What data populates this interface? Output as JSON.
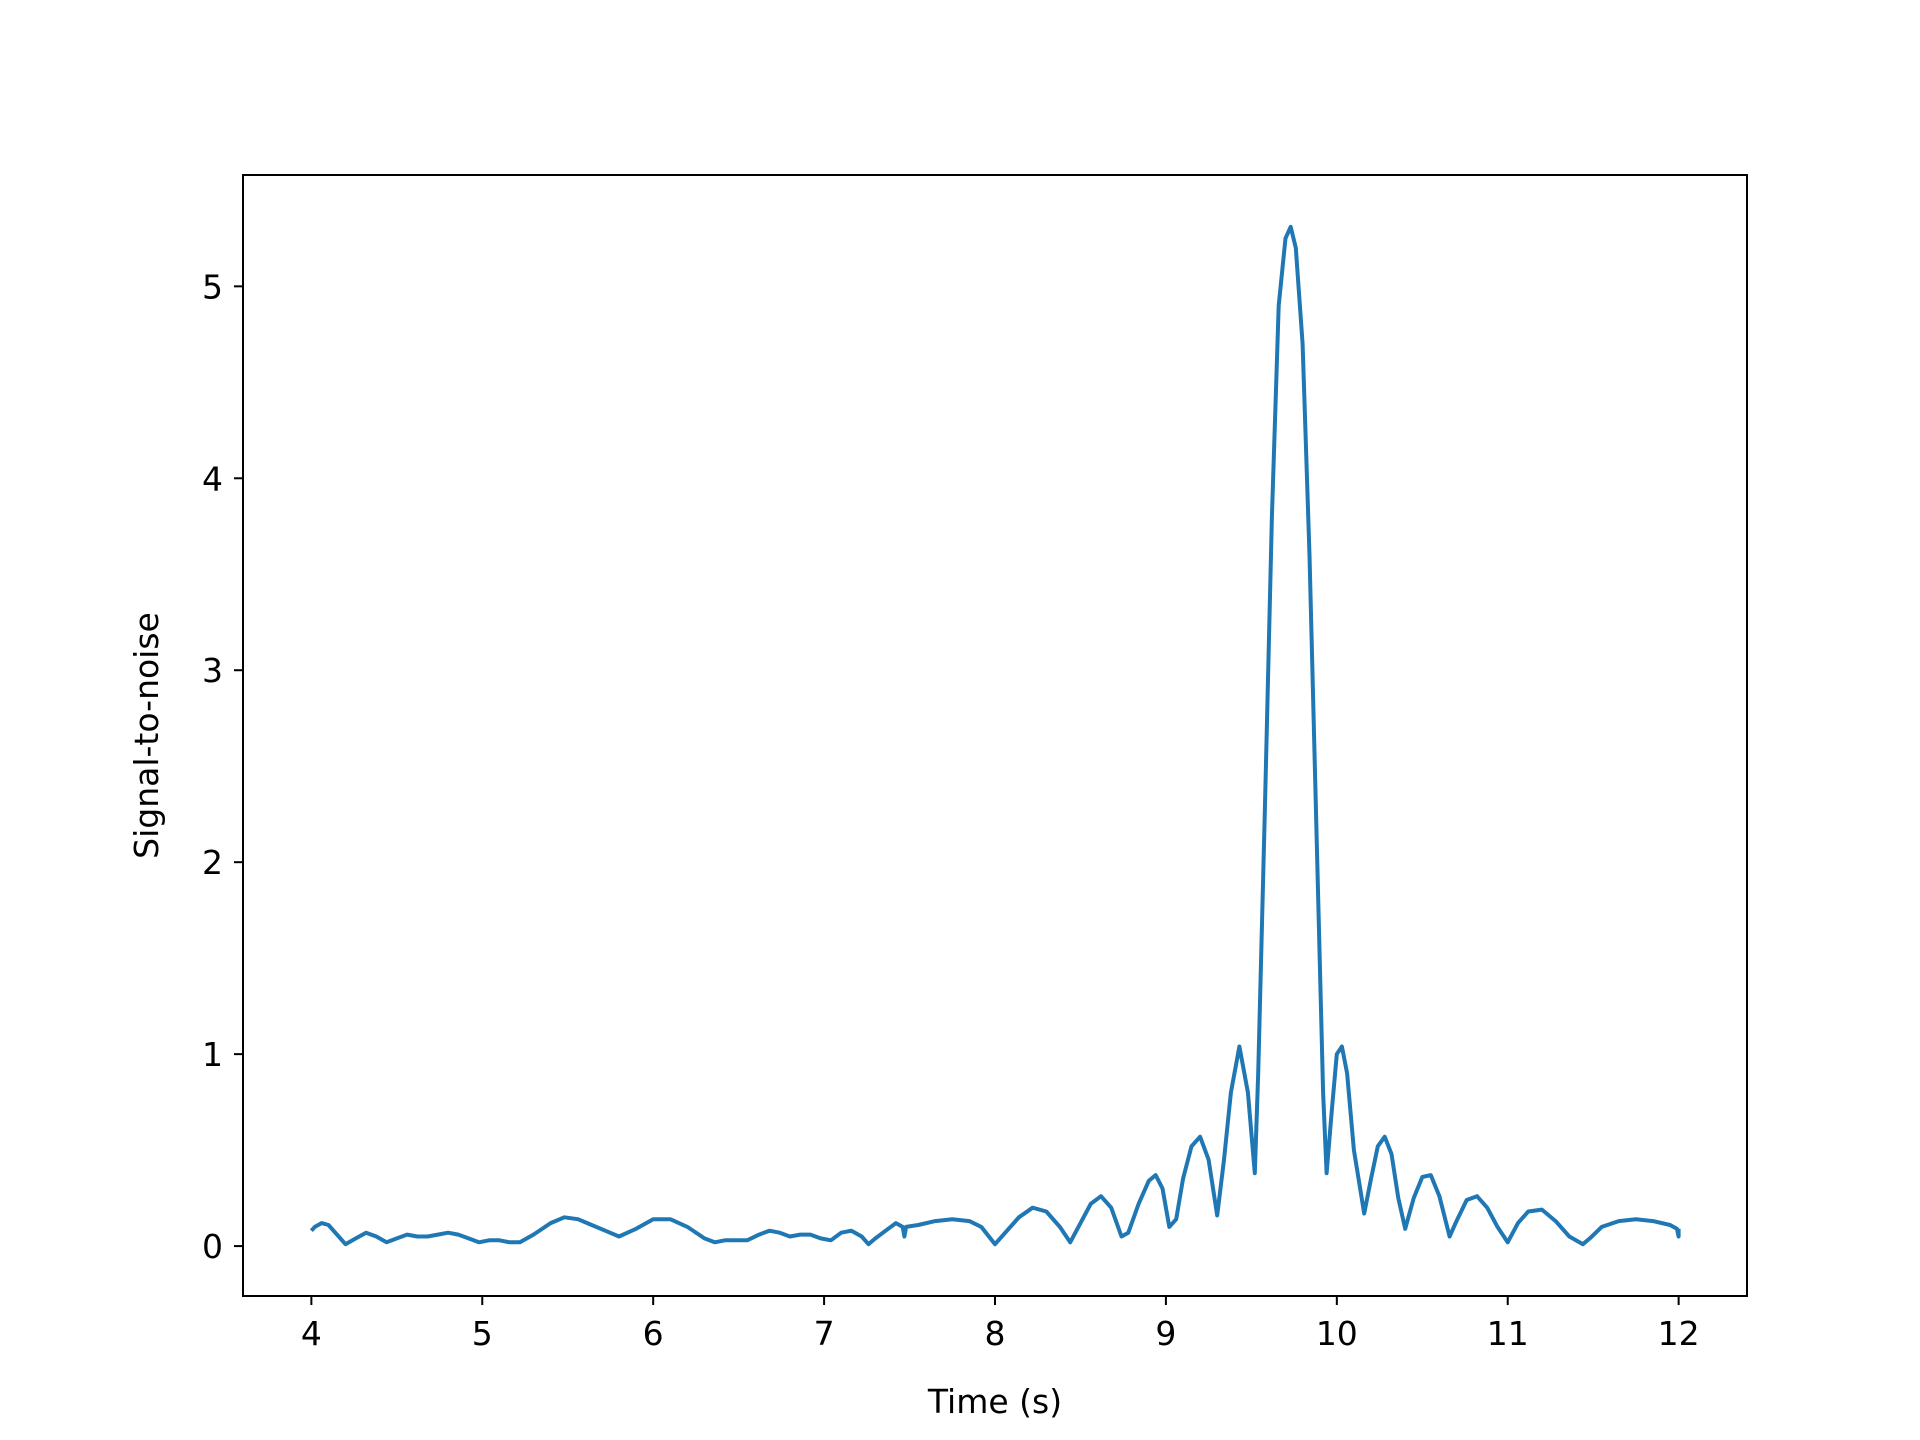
{
  "chart_data": {
    "type": "line",
    "title": "",
    "xlabel": "Time (s)",
    "ylabel": "Signal-to-noise",
    "xlim": [
      3.6,
      12.4
    ],
    "ylim": [
      -0.26,
      5.58
    ],
    "xticks": [
      4,
      5,
      6,
      7,
      8,
      9,
      10,
      11,
      12
    ],
    "yticks": [
      0,
      1,
      2,
      3,
      4,
      5
    ],
    "grid": false,
    "legend": "none",
    "series": [
      {
        "color": "#1f77b4",
        "x": [
          4.0,
          4.02,
          4.06,
          4.1,
          4.14,
          4.2,
          4.26,
          4.32,
          4.38,
          4.44,
          4.5,
          4.56,
          4.62,
          4.68,
          4.74,
          4.8,
          4.86,
          4.92,
          4.98,
          5.04,
          5.1,
          5.16,
          5.22,
          5.3,
          5.4,
          5.48,
          5.56,
          5.64,
          5.72,
          5.8,
          5.9,
          6.0,
          6.1,
          6.2,
          6.3,
          6.36,
          6.42,
          6.48,
          6.55,
          6.62,
          6.68,
          6.74,
          6.8,
          6.86,
          6.92,
          6.98,
          7.04,
          7.1,
          7.16,
          7.22,
          7.26,
          7.3,
          7.36,
          7.42,
          7.46,
          7.47,
          7.48,
          7.55,
          7.65,
          7.75,
          7.85,
          7.92,
          8.0,
          8.07,
          8.14,
          8.22,
          8.3,
          8.38,
          8.44,
          8.5,
          8.56,
          8.62,
          8.68,
          8.74,
          8.78,
          8.84,
          8.9,
          8.94,
          8.98,
          9.02,
          9.06,
          9.1,
          9.15,
          9.2,
          9.25,
          9.3,
          9.34,
          9.38,
          9.43,
          9.48,
          9.52,
          9.54,
          9.58,
          9.62,
          9.66,
          9.7,
          9.73,
          9.76,
          9.8,
          9.84,
          9.88,
          9.92,
          9.94,
          9.97,
          10.0,
          10.03,
          10.06,
          10.1,
          10.16,
          10.2,
          10.24,
          10.28,
          10.32,
          10.36,
          10.4,
          10.45,
          10.5,
          10.55,
          10.6,
          10.66,
          10.7,
          10.76,
          10.82,
          10.88,
          10.94,
          11.0,
          11.06,
          11.12,
          11.2,
          11.28,
          11.36,
          11.44,
          11.48,
          11.55,
          11.65,
          11.75,
          11.85,
          11.95,
          11.99,
          12.0,
          12.0
        ],
        "y": [
          0.08,
          0.1,
          0.12,
          0.11,
          0.07,
          0.01,
          0.04,
          0.07,
          0.05,
          0.02,
          0.04,
          0.06,
          0.05,
          0.05,
          0.06,
          0.07,
          0.06,
          0.04,
          0.02,
          0.03,
          0.03,
          0.02,
          0.02,
          0.06,
          0.12,
          0.15,
          0.14,
          0.11,
          0.08,
          0.05,
          0.09,
          0.14,
          0.14,
          0.1,
          0.04,
          0.02,
          0.03,
          0.03,
          0.03,
          0.06,
          0.08,
          0.07,
          0.05,
          0.06,
          0.06,
          0.04,
          0.03,
          0.07,
          0.08,
          0.05,
          0.01,
          0.04,
          0.08,
          0.12,
          0.1,
          0.05,
          0.1,
          0.11,
          0.13,
          0.14,
          0.13,
          0.1,
          0.01,
          0.08,
          0.15,
          0.2,
          0.18,
          0.1,
          0.02,
          0.12,
          0.22,
          0.26,
          0.2,
          0.05,
          0.07,
          0.22,
          0.34,
          0.37,
          0.3,
          0.1,
          0.14,
          0.35,
          0.52,
          0.57,
          0.45,
          0.16,
          0.45,
          0.8,
          1.04,
          0.8,
          0.38,
          0.9,
          2.3,
          3.8,
          4.9,
          5.25,
          5.31,
          5.2,
          4.7,
          3.6,
          2.2,
          0.8,
          0.38,
          0.7,
          1.0,
          1.04,
          0.9,
          0.5,
          0.17,
          0.35,
          0.52,
          0.57,
          0.48,
          0.25,
          0.09,
          0.25,
          0.36,
          0.37,
          0.26,
          0.05,
          0.13,
          0.24,
          0.26,
          0.2,
          0.1,
          0.02,
          0.12,
          0.18,
          0.19,
          0.13,
          0.05,
          0.01,
          0.04,
          0.1,
          0.13,
          0.14,
          0.13,
          0.11,
          0.09,
          0.05,
          0.09
        ]
      }
    ]
  }
}
